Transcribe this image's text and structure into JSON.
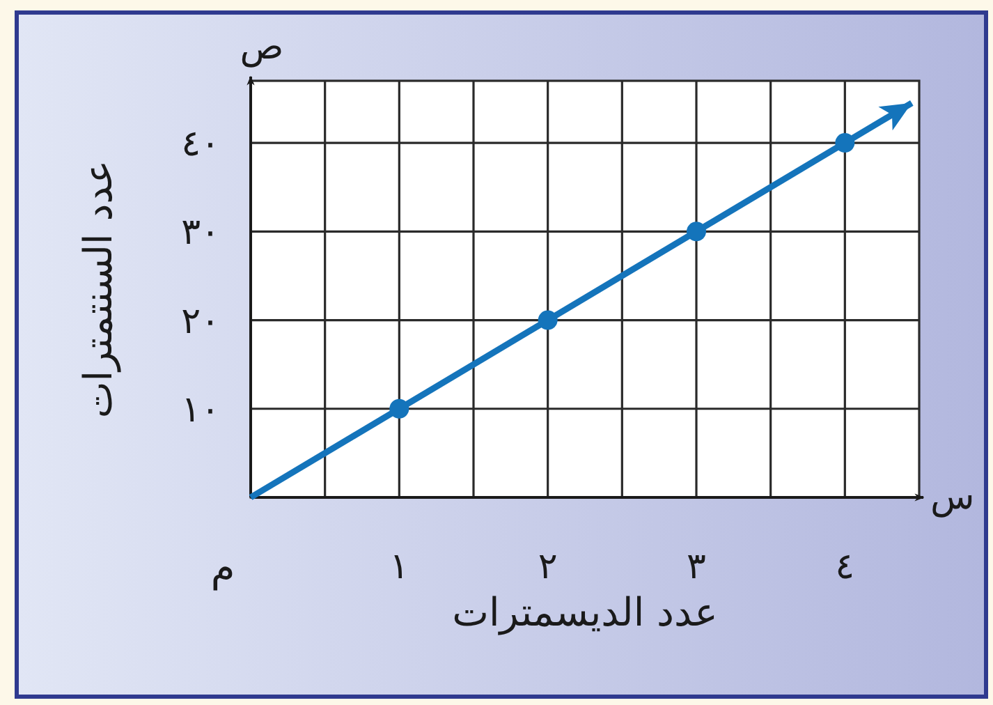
{
  "chart_data": {
    "type": "line",
    "xlabel": "عدد الديسمترات",
    "ylabel": "عدد السنتمترات",
    "xlim": [
      0,
      4.5
    ],
    "ylim": [
      0,
      47
    ],
    "xticks": [
      {
        "value": 0.5,
        "label": null
      },
      {
        "value": 1,
        "label": "١"
      },
      {
        "value": 1.5,
        "label": null
      },
      {
        "value": 2,
        "label": "٢"
      },
      {
        "value": 2.5,
        "label": null
      },
      {
        "value": 3,
        "label": "٣"
      },
      {
        "value": 3.5,
        "label": null
      },
      {
        "value": 4,
        "label": "٤"
      }
    ],
    "yticks": [
      {
        "value": 10,
        "label": "١٠"
      },
      {
        "value": 20,
        "label": "٢٠"
      },
      {
        "value": 30,
        "label": "٣٠"
      },
      {
        "value": 40,
        "label": "٤٠"
      }
    ],
    "grid": true,
    "series": [
      {
        "type": "line",
        "color": "#1474bb",
        "x": [
          0,
          4.45
        ],
        "values": [
          0,
          44.5
        ],
        "marker": "none"
      },
      {
        "type": "scatter",
        "color": "#1474bb",
        "x": [
          1,
          2,
          3,
          4
        ],
        "values": [
          10,
          20,
          30,
          40
        ],
        "marker": "circle"
      }
    ],
    "annotations": [
      "ص",
      "س",
      {
        "text": "م",
        "x": 0,
        "y": 0
      }
    ]
  }
}
